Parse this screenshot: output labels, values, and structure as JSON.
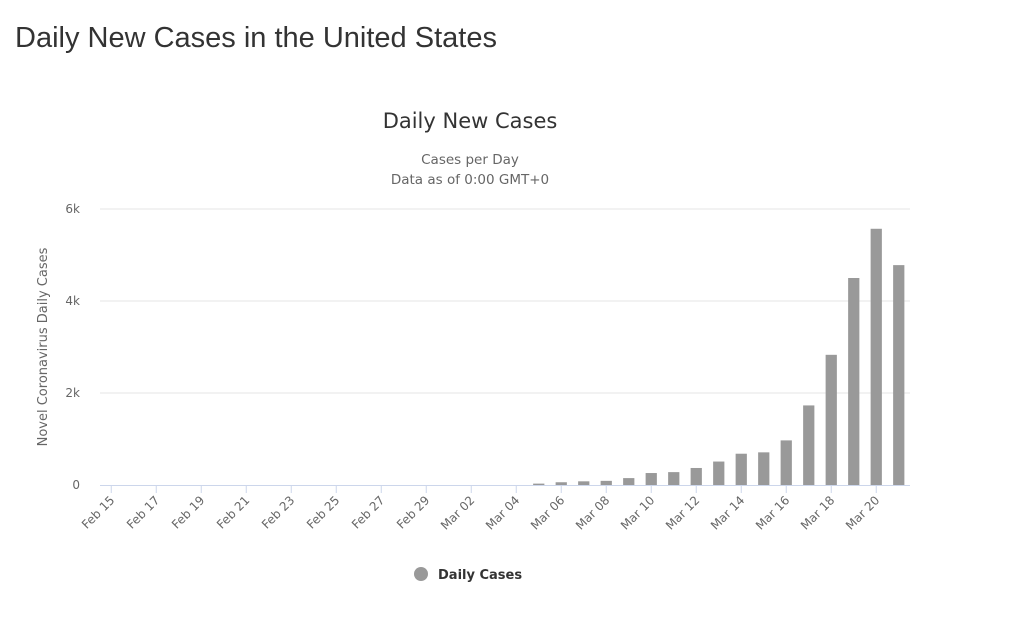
{
  "page": {
    "heading": "Daily New Cases in the United States"
  },
  "colors": {
    "bar": "#999999",
    "grid": "#e6e6e6",
    "axis_line": "#ccd6eb",
    "text_dark": "#333333",
    "text_muted": "#666666"
  },
  "chart_data": {
    "type": "bar",
    "title": "Daily New Cases",
    "subtitle": [
      "Cases per Day",
      "Data as of 0:00 GMT+0"
    ],
    "xlabel": "",
    "ylabel": "Novel Coronavirus Daily Cases",
    "ylim": [
      0,
      6000
    ],
    "yticks": [
      0,
      2000,
      4000,
      6000
    ],
    "ytick_labels": [
      "0",
      "2k",
      "4k",
      "6k"
    ],
    "grid": true,
    "legend_position": "bottom-center",
    "categories": [
      "Feb 15",
      "Feb 16",
      "Feb 17",
      "Feb 18",
      "Feb 19",
      "Feb 20",
      "Feb 21",
      "Feb 22",
      "Feb 23",
      "Feb 24",
      "Feb 25",
      "Feb 26",
      "Feb 27",
      "Feb 28",
      "Feb 29",
      "Mar 01",
      "Mar 02",
      "Mar 03",
      "Mar 04",
      "Mar 05",
      "Mar 06",
      "Mar 07",
      "Mar 08",
      "Mar 09",
      "Mar 10",
      "Mar 11",
      "Mar 12",
      "Mar 13",
      "Mar 14",
      "Mar 15",
      "Mar 16",
      "Mar 17",
      "Mar 18",
      "Mar 19",
      "Mar 20",
      "Mar 21"
    ],
    "tick_labels": [
      "Feb 15",
      "Feb 17",
      "Feb 19",
      "Feb 21",
      "Feb 23",
      "Feb 25",
      "Feb 27",
      "Feb 29",
      "Mar 02",
      "Mar 04",
      "Mar 06",
      "Mar 08",
      "Mar 10",
      "Mar 12",
      "Mar 14",
      "Mar 16",
      "Mar 18",
      "Mar 20"
    ],
    "series": [
      {
        "name": "Daily Cases",
        "color": "#999999",
        "values": [
          0,
          0,
          0,
          0,
          0,
          0,
          0,
          0,
          0,
          0,
          0,
          0,
          0,
          0,
          0,
          0,
          0,
          0,
          0,
          30,
          60,
          80,
          90,
          150,
          260,
          280,
          370,
          510,
          680,
          710,
          970,
          1730,
          2830,
          4500,
          5570,
          4780
        ]
      }
    ]
  }
}
